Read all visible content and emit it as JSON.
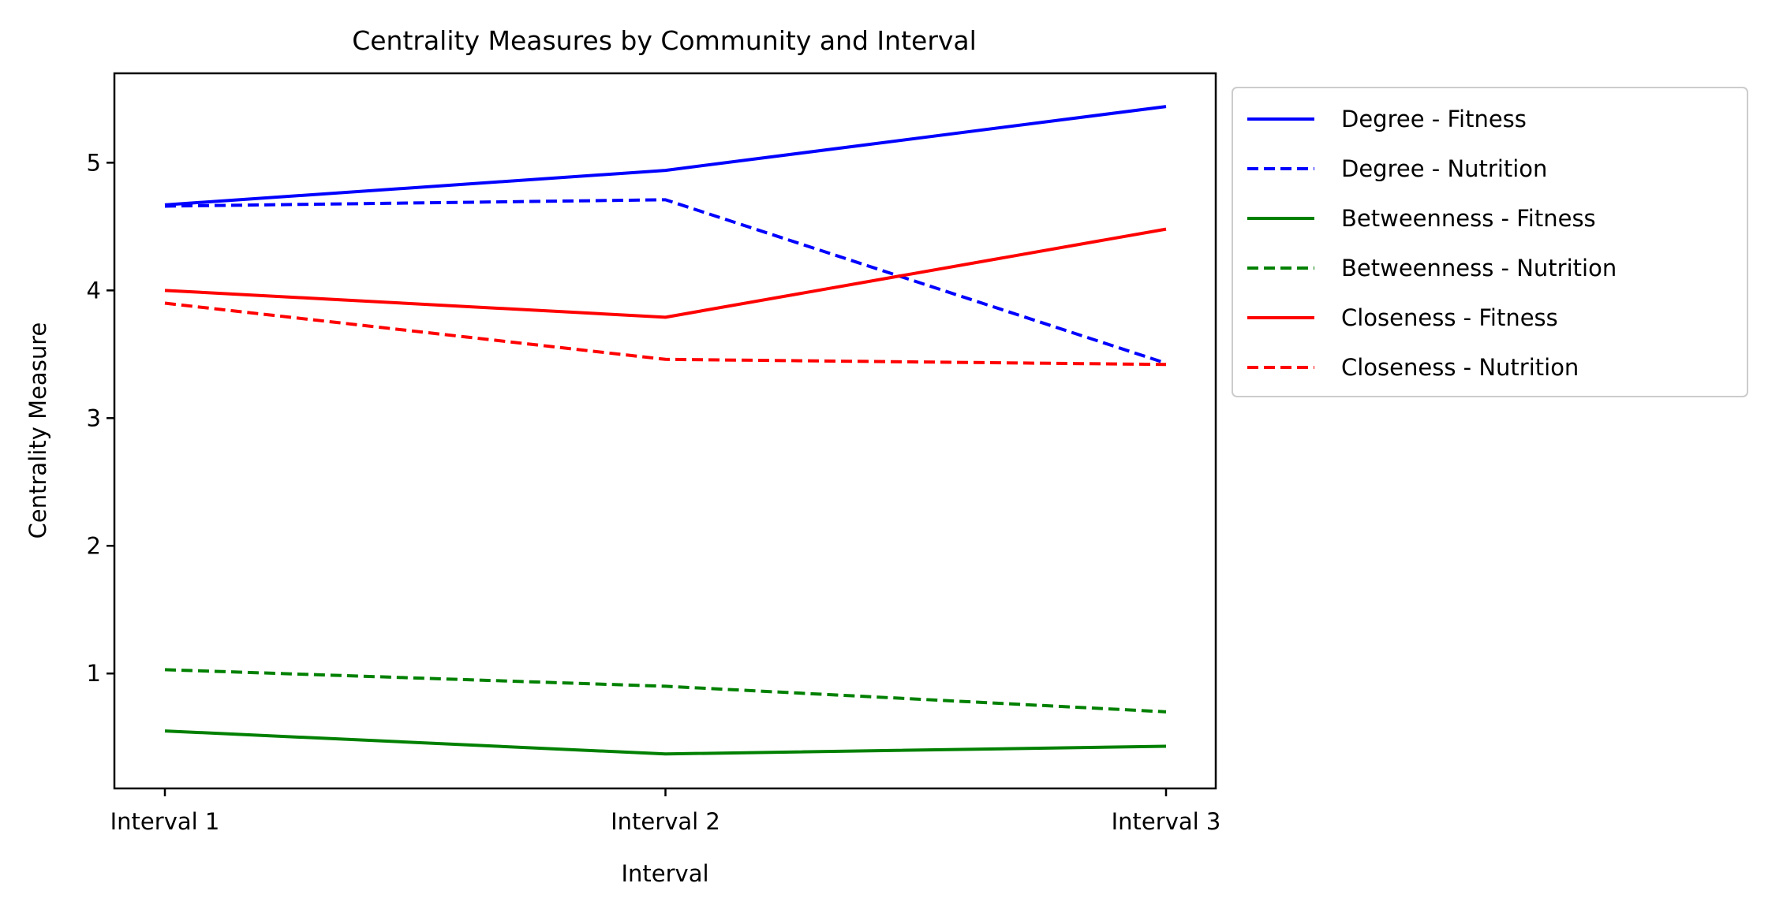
{
  "chart_data": {
    "type": "line",
    "title": "Centrality Measures by Community and Interval",
    "xlabel": "Interval",
    "ylabel": "Centrality Measure",
    "categories": [
      "Interval 1",
      "Interval 2",
      "Interval 3"
    ],
    "ylim": [
      0.1,
      5.7
    ],
    "yticks": [
      1,
      2,
      3,
      4,
      5
    ],
    "grid": false,
    "legend_position": "outside-right",
    "series": [
      {
        "name": "Degree - Fitness",
        "color": "#0000ff",
        "style": "solid",
        "values": [
          4.67,
          4.94,
          5.44
        ]
      },
      {
        "name": "Degree - Nutrition",
        "color": "#0000ff",
        "style": "dashed",
        "values": [
          4.66,
          4.71,
          3.43
        ]
      },
      {
        "name": "Betweenness - Fitness",
        "color": "#008000",
        "style": "solid",
        "values": [
          0.55,
          0.37,
          0.43
        ]
      },
      {
        "name": "Betweenness - Nutrition",
        "color": "#008000",
        "style": "dashed",
        "values": [
          1.03,
          0.9,
          0.7
        ]
      },
      {
        "name": "Closeness - Fitness",
        "color": "#ff0000",
        "style": "solid",
        "values": [
          4.0,
          3.79,
          4.48
        ]
      },
      {
        "name": "Closeness - Nutrition",
        "color": "#ff0000",
        "style": "dashed",
        "values": [
          3.9,
          3.46,
          3.42
        ]
      }
    ]
  }
}
